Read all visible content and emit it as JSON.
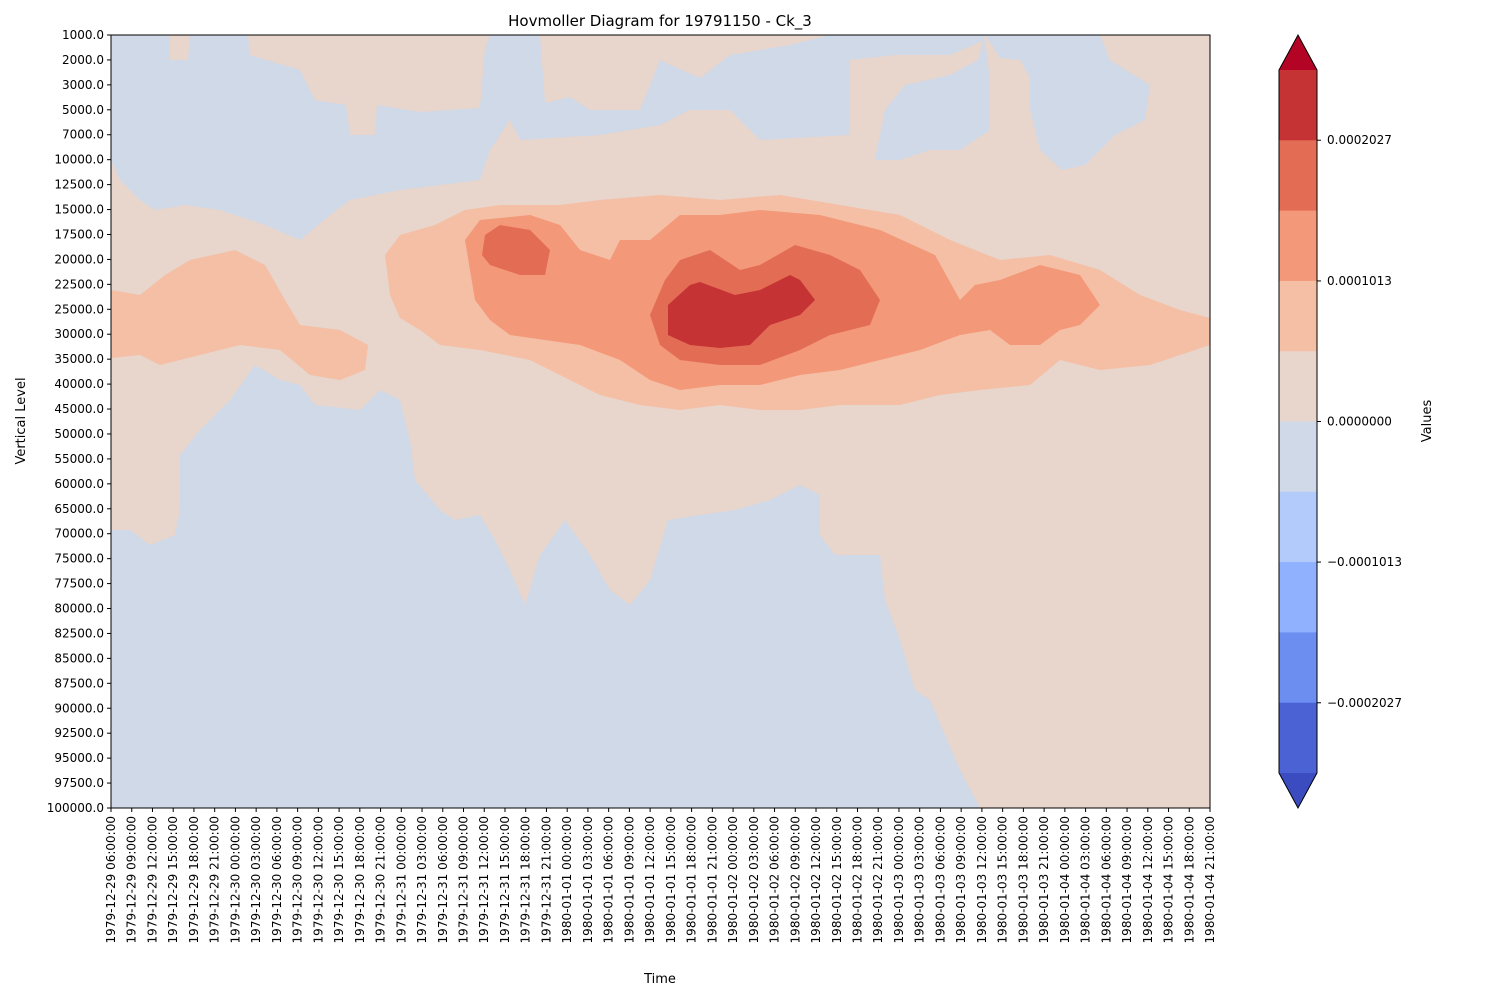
{
  "chart_data": {
    "type": "heatmap",
    "subtype": "filled-contour",
    "title": "Hovmoller Diagram for 19791150 - Ck_3",
    "xlabel": "Time",
    "ylabel": "Vertical Level",
    "colorbar_label": "Values",
    "x": [
      "1979-12-29 06:00:00",
      "1979-12-29 09:00:00",
      "1979-12-29 12:00:00",
      "1979-12-29 15:00:00",
      "1979-12-29 18:00:00",
      "1979-12-29 21:00:00",
      "1979-12-30 00:00:00",
      "1979-12-30 03:00:00",
      "1979-12-30 06:00:00",
      "1979-12-30 09:00:00",
      "1979-12-30 12:00:00",
      "1979-12-30 15:00:00",
      "1979-12-30 18:00:00",
      "1979-12-30 21:00:00",
      "1979-12-31 00:00:00",
      "1979-12-31 03:00:00",
      "1979-12-31 06:00:00",
      "1979-12-31 09:00:00",
      "1979-12-31 12:00:00",
      "1979-12-31 15:00:00",
      "1979-12-31 18:00:00",
      "1979-12-31 21:00:00",
      "1980-01-01 00:00:00",
      "1980-01-01 03:00:00",
      "1980-01-01 06:00:00",
      "1980-01-01 09:00:00",
      "1980-01-01 12:00:00",
      "1980-01-01 15:00:00",
      "1980-01-01 18:00:00",
      "1980-01-01 21:00:00",
      "1980-01-02 00:00:00",
      "1980-01-02 03:00:00",
      "1980-01-02 06:00:00",
      "1980-01-02 09:00:00",
      "1980-01-02 12:00:00",
      "1980-01-02 15:00:00",
      "1980-01-02 18:00:00",
      "1980-01-02 21:00:00",
      "1980-01-03 00:00:00",
      "1980-01-03 03:00:00",
      "1980-01-03 06:00:00",
      "1980-01-03 09:00:00",
      "1980-01-03 12:00:00",
      "1980-01-03 15:00:00",
      "1980-01-03 18:00:00",
      "1980-01-03 21:00:00",
      "1980-01-04 00:00:00",
      "1980-01-04 03:00:00",
      "1980-01-04 06:00:00",
      "1980-01-04 09:00:00",
      "1980-01-04 12:00:00",
      "1980-01-04 15:00:00",
      "1980-01-04 18:00:00",
      "1980-01-04 21:00:00"
    ],
    "y": [
      "1000.0",
      "2000.0",
      "3000.0",
      "5000.0",
      "7000.0",
      "10000.0",
      "12500.0",
      "15000.0",
      "17500.0",
      "20000.0",
      "22500.0",
      "25000.0",
      "30000.0",
      "35000.0",
      "40000.0",
      "45000.0",
      "50000.0",
      "55000.0",
      "60000.0",
      "65000.0",
      "70000.0",
      "75000.0",
      "77500.0",
      "80000.0",
      "82500.0",
      "85000.0",
      "87500.0",
      "90000.0",
      "92500.0",
      "95000.0",
      "97500.0",
      "100000.0"
    ],
    "y_inverted": true,
    "colorbar": {
      "ticks": [
        "0.0002027",
        "0.0001013",
        "0.0000000",
        "−0.0001013",
        "−0.0002027"
      ],
      "levels_high_to_low": [
        0.0002533,
        0.0002027,
        0.000152,
        0.0001013,
        5.07e-05,
        0.0,
        -5.07e-05,
        -0.0001013,
        -0.000152,
        -0.0002027,
        -0.0002533
      ],
      "bands_high_to_low": [
        "#c53334",
        "#e36c55",
        "#f39879",
        "#f5bfa5",
        "#e8d5cc",
        "#cfd9e8",
        "#b2cbfa",
        "#8fb1fe",
        "#6c8ef0",
        "#4b62d4"
      ],
      "extend_colors": {
        "max": "#b40426",
        "min": "#3b4cc0"
      },
      "extend": "both"
    },
    "regions": [
      {
        "level": "positive_weak",
        "color": "#e8d5cc",
        "note": "background of central/upper-right region"
      },
      {
        "level": "negative_weak",
        "color": "#cfd9e8",
        "note": "lower-left and top-left"
      },
      {
        "level": "band_1",
        "color": "#f5bfa5",
        "note": "horizontal band ~15000-40000"
      },
      {
        "level": "band_2",
        "color": "#f39879",
        "note": "core ~17500-40000, 1979-12-31 to 1980-01-03"
      },
      {
        "level": "band_3",
        "color": "#e36c55",
        "note": "core maxima ~20000-35000"
      },
      {
        "level": "band_4",
        "color": "#c53334",
        "note": "max ~22500-35000 around 1980-01-02"
      }
    ]
  }
}
